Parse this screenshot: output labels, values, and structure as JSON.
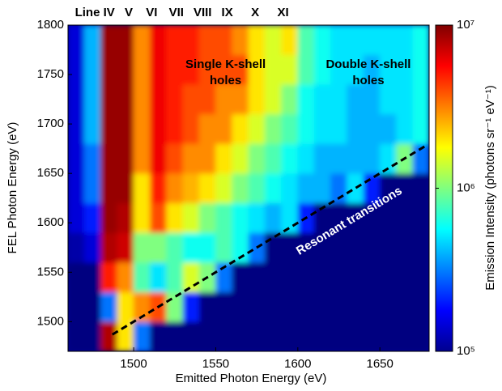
{
  "chart_data": {
    "type": "heatmap",
    "colormap": "jet",
    "xlabel": "Emitted Photon Energy (eV)",
    "ylabel": "FEL Photon Energy (eV)",
    "colorbar_label": "Emission Intensity (photons sr⁻¹ eV⁻¹)",
    "xlim": [
      1460,
      1680
    ],
    "ylim": [
      1470,
      1800
    ],
    "xticks": [
      1500,
      1550,
      1600,
      1650
    ],
    "yticks": [
      1500,
      1550,
      1600,
      1650,
      1700,
      1750,
      1800
    ],
    "zlim": [
      100000,
      10000000
    ],
    "zscale": "log",
    "zticks": [
      {
        "value": 100000,
        "label": "10⁵"
      },
      {
        "value": 1000000,
        "label": "10⁶"
      },
      {
        "value": 10000000,
        "label": "10⁷"
      }
    ],
    "x_edges": [
      1460,
      1470,
      1480,
      1490,
      1500,
      1510,
      1520,
      1530,
      1540,
      1550,
      1560,
      1570,
      1580,
      1590,
      1600,
      1610,
      1620,
      1630,
      1640,
      1650,
      1660,
      1670,
      1680
    ],
    "y_edges": [
      1470,
      1500,
      1530,
      1560,
      1590,
      1620,
      1650,
      1680,
      1710,
      1740,
      1770,
      1800
    ],
    "values": [
      [
        100000.0,
        100000.0,
        8000000.0,
        2000000.0,
        300000.0,
        100000.0,
        100000.0,
        100000.0,
        100000.0,
        100000.0,
        100000.0,
        100000.0,
        100000.0,
        100000.0,
        100000.0,
        100000.0,
        100000.0,
        100000.0,
        100000.0,
        100000.0,
        100000.0,
        100000.0
      ],
      [
        100000.0,
        100000.0,
        300000.0,
        2000000.0,
        3000000.0,
        4000000.0,
        1000000.0,
        200000.0,
        100000.0,
        100000.0,
        100000.0,
        100000.0,
        100000.0,
        100000.0,
        100000.0,
        100000.0,
        100000.0,
        100000.0,
        100000.0,
        100000.0,
        100000.0,
        100000.0
      ],
      [
        100000.0,
        100000.0,
        5000000.0,
        3000000.0,
        800000.0,
        500000.0,
        800000.0,
        1500000.0,
        1000000.0,
        300000.0,
        100000.0,
        100000.0,
        100000.0,
        100000.0,
        100000.0,
        100000.0,
        100000.0,
        100000.0,
        100000.0,
        100000.0,
        100000.0,
        100000.0
      ],
      [
        120000.0,
        150000.0,
        8000000.0,
        7000000.0,
        1000000.0,
        1000000.0,
        800000.0,
        600000.0,
        600000.0,
        800000.0,
        600000.0,
        300000.0,
        100000.0,
        100000.0,
        100000.0,
        100000.0,
        100000.0,
        100000.0,
        100000.0,
        100000.0,
        100000.0,
        100000.0
      ],
      [
        150000.0,
        200000.0,
        9000000.0,
        8000000.0,
        2000000.0,
        4000000.0,
        2000000.0,
        1500000.0,
        1000000.0,
        800000.0,
        600000.0,
        500000.0,
        400000.0,
        500000.0,
        200000.0,
        100000.0,
        100000.0,
        100000.0,
        100000.0,
        100000.0,
        100000.0,
        100000.0
      ],
      [
        150000.0,
        300000.0,
        9000000.0,
        9000000.0,
        2000000.0,
        5000000.0,
        3000000.0,
        2500000.0,
        2000000.0,
        1500000.0,
        1000000.0,
        800000.0,
        600000.0,
        500000.0,
        400000.0,
        400000.0,
        300000.0,
        500000.0,
        200000.0,
        100000.0,
        100000.0,
        100000.0
      ],
      [
        150000.0,
        300000.0,
        9000000.0,
        9000000.0,
        3000000.0,
        6000000.0,
        4000000.0,
        3000000.0,
        3000000.0,
        2000000.0,
        1500000.0,
        1000000.0,
        800000.0,
        600000.0,
        500000.0,
        400000.0,
        400000.0,
        400000.0,
        400000.0,
        500000.0,
        1000000.0,
        300000.0
      ],
      [
        150000.0,
        400000.0,
        9000000.0,
        9000000.0,
        3000000.0,
        6000000.0,
        5000000.0,
        4000000.0,
        3000000.0,
        3000000.0,
        2000000.0,
        1500000.0,
        1000000.0,
        800000.0,
        600000.0,
        500000.0,
        500000.0,
        400000.0,
        400000.0,
        400000.0,
        500000.0,
        600000.0
      ],
      [
        150000.0,
        400000.0,
        9000000.0,
        9000000.0,
        3000000.0,
        6000000.0,
        5000000.0,
        4000000.0,
        4000000.0,
        3000000.0,
        3000000.0,
        2000000.0,
        1500000.0,
        1000000.0,
        600000.0,
        500000.0,
        500000.0,
        400000.0,
        400000.0,
        500000.0,
        500000.0,
        600000.0
      ],
      [
        150000.0,
        400000.0,
        9000000.0,
        9000000.0,
        3000000.0,
        6000000.0,
        5000000.0,
        5000000.0,
        4000000.0,
        4000000.0,
        4000000.0,
        2000000.0,
        1500000.0,
        1500000.0,
        800000.0,
        600000.0,
        500000.0,
        500000.0,
        400000.0,
        500000.0,
        500000.0,
        600000.0
      ],
      [
        150000.0,
        400000.0,
        9000000.0,
        9000000.0,
        3000000.0,
        6000000.0,
        5000000.0,
        5000000.0,
        4000000.0,
        4000000.0,
        3000000.0,
        2000000.0,
        1500000.0,
        2000000.0,
        800000.0,
        600000.0,
        500000.0,
        500000.0,
        500000.0,
        500000.0,
        500000.0,
        600000.0
      ]
    ],
    "line_header": "Line",
    "line_labels": [
      {
        "text": "IV",
        "x": 1485
      },
      {
        "text": "V",
        "x": 1497
      },
      {
        "text": "VI",
        "x": 1511
      },
      {
        "text": "VII",
        "x": 1526
      },
      {
        "text": "VIII",
        "x": 1542
      },
      {
        "text": "IX",
        "x": 1557
      },
      {
        "text": "X",
        "x": 1574
      },
      {
        "text": "XI",
        "x": 1591
      }
    ],
    "annotations": [
      {
        "lines": [
          "Single K-shell",
          "holes"
        ],
        "x": 1556,
        "y": 1760
      },
      {
        "lines": [
          "Double K-shell",
          "holes"
        ],
        "x": 1643,
        "y": 1760
      }
    ],
    "dashed_line": {
      "label": "Resonant transitions",
      "x": [
        1487,
        1678
      ],
      "y": [
        1487,
        1678
      ]
    }
  }
}
